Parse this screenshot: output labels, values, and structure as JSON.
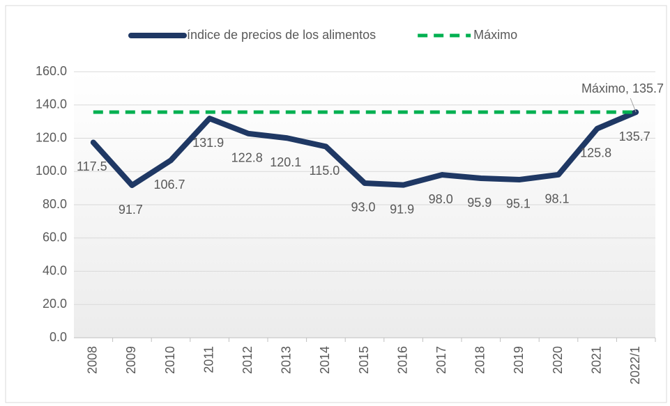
{
  "chart_data": {
    "type": "line",
    "categories": [
      "2008",
      "2009",
      "2010",
      "2011",
      "2012",
      "2013",
      "2014",
      "2015",
      "2016",
      "2017",
      "2018",
      "2019",
      "2020",
      "2021",
      "2022/1"
    ],
    "series": [
      {
        "name": "índice de precios de los alimentos",
        "color": "#1f3864",
        "values": [
          117.5,
          91.7,
          106.7,
          131.9,
          122.8,
          120.1,
          115.0,
          93.0,
          91.9,
          98.0,
          95.9,
          95.1,
          98.1,
          125.8,
          135.7
        ],
        "value_labels": [
          "117.5",
          "91.7",
          "106.7",
          "131.9",
          "122.8",
          "120.1",
          "115.0",
          "93.0",
          "91.9",
          "98.0",
          "95.9",
          "95.1",
          "98.1",
          "125.8",
          "135.7"
        ]
      },
      {
        "name": "Máximo",
        "color": "#00b050",
        "dashed": true,
        "values": [
          135.7,
          135.7,
          135.7,
          135.7,
          135.7,
          135.7,
          135.7,
          135.7,
          135.7,
          135.7,
          135.7,
          135.7,
          135.7,
          135.7,
          135.7
        ]
      }
    ],
    "annotation": "Máximo, 135.7",
    "ylim": [
      0,
      160
    ],
    "yticks": [
      {
        "value": 0,
        "label": "0.0"
      },
      {
        "value": 20,
        "label": "20.0"
      },
      {
        "value": 40,
        "label": "40.0"
      },
      {
        "value": 60,
        "label": "60.0"
      },
      {
        "value": 80,
        "label": "80.0"
      },
      {
        "value": 100,
        "label": "100.0"
      },
      {
        "value": 120,
        "label": "120.0"
      },
      {
        "value": 140,
        "label": "140.0"
      },
      {
        "value": 160,
        "label": "160.0"
      }
    ],
    "grid": true,
    "legend": "top"
  }
}
